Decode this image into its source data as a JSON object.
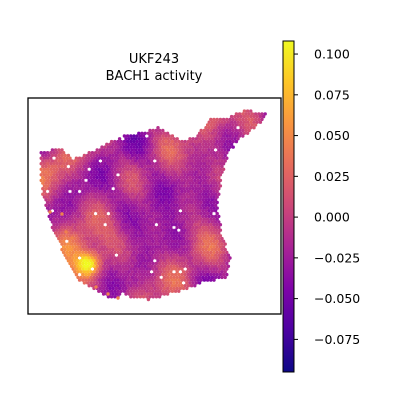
{
  "chart_data": {
    "type": "heatmap",
    "subtype": "spatial-spot-map",
    "title": [
      "UKF243",
      "BACH1 activity"
    ],
    "xlabel": "",
    "ylabel": "",
    "colormap": "plasma",
    "colorbar": {
      "range": [
        -0.095,
        0.108
      ],
      "ticks": [
        0.1,
        0.075,
        0.05,
        0.025,
        0.0,
        -0.025,
        -0.05,
        -0.075
      ],
      "tick_labels": [
        "0.100",
        "0.075",
        "0.050",
        "0.025",
        "0.000",
        "−0.025",
        "−0.050",
        "−0.075"
      ]
    },
    "axes_frame": true,
    "grid": false,
    "hotspot_value": 0.105
  }
}
